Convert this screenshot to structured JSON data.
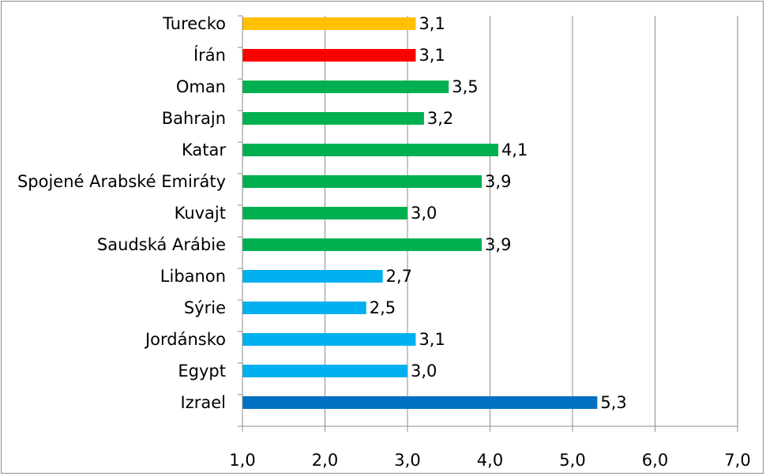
{
  "chart_data": {
    "type": "bar",
    "orientation": "horizontal",
    "categories": [
      "Turecko",
      "Írán",
      "Oman",
      "Bahrajn",
      "Katar",
      "Spojené Arabské Emiráty",
      "Kuvajt",
      "Saudská Arábie",
      "Libanon",
      "Sýrie",
      "Jordánsko",
      "Egypt",
      "Izrael"
    ],
    "values": [
      3.1,
      3.1,
      3.5,
      3.2,
      4.1,
      3.9,
      3.0,
      3.9,
      2.7,
      2.5,
      3.1,
      3.0,
      5.3
    ],
    "value_labels": [
      "3,1",
      "3,1",
      "3,5",
      "3,2",
      "4,1",
      "3,9",
      "3,0",
      "3,9",
      "2,7",
      "2,5",
      "3,1",
      "3,0",
      "5,3"
    ],
    "colors": [
      "#ffc000",
      "#ff0000",
      "#00b050",
      "#00b050",
      "#00b050",
      "#00b050",
      "#00b050",
      "#00b050",
      "#00b0f0",
      "#00b0f0",
      "#00b0f0",
      "#00b0f0",
      "#0070c0"
    ],
    "xlim": [
      1.0,
      7.0
    ],
    "xticks": [
      1.0,
      2.0,
      3.0,
      4.0,
      5.0,
      6.0,
      7.0
    ],
    "xtick_labels": [
      "1,0",
      "2,0",
      "3,0",
      "4,0",
      "5,0",
      "6,0",
      "7,0"
    ],
    "grid": true,
    "gridline_color": "#8c8c8c",
    "legend": false
  }
}
